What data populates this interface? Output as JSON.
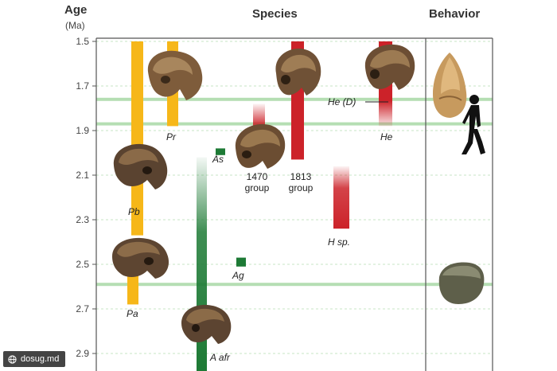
{
  "header": {
    "age": "Age",
    "age_unit": "(Ma)",
    "species": "Species",
    "behavior": "Behavior"
  },
  "watermark": {
    "text": "dosug.md",
    "icon": "globe-icon"
  },
  "colors": {
    "paranthropus": "#f6b719",
    "homo": "#cc2229",
    "australopith": "#1d7a35",
    "guide": "#b5deb3",
    "grid": "#c7e6c5"
  },
  "chart_data": {
    "type": "range-bar",
    "xlabel": "",
    "ylabel": "Age (Ma)",
    "y_ticks": [
      "1.5",
      "1.7",
      "1.9",
      "2.1",
      "2.3",
      "2.5",
      "2.7",
      "2.9"
    ],
    "ylim": [
      1.5,
      3.0
    ],
    "y_inverted": true,
    "highlight_lines": [
      1.76,
      1.87,
      2.59
    ],
    "series": [
      {
        "name": "Pr",
        "group": "paranthropus",
        "start": 1.5,
        "end": 1.88
      },
      {
        "name": "Pb",
        "group": "paranthropus",
        "start": 1.5,
        "end": 2.37
      },
      {
        "name": "Pa",
        "group": "paranthropus",
        "start": 2.45,
        "end": 2.68
      },
      {
        "name": "As",
        "group": "australopith",
        "start": 1.98,
        "end": 2.01
      },
      {
        "name": "Ag",
        "group": "australopith",
        "start": 2.47,
        "end": 2.51
      },
      {
        "name": "A afr",
        "group": "australopith",
        "start": 2.02,
        "end": 3.0,
        "fade_top": true
      },
      {
        "name": "1470 group",
        "group": "homo",
        "start": 1.78,
        "end": 2.03,
        "fade_top": true
      },
      {
        "name": "1813 group",
        "group": "homo",
        "start": 1.5,
        "end": 2.03
      },
      {
        "name": "H sp.",
        "group": "homo",
        "start": 2.06,
        "end": 2.34,
        "fade_top": true
      },
      {
        "name": "He",
        "group": "homo",
        "start": 1.5,
        "end": 1.88,
        "fade_bottom": true
      }
    ],
    "annotations": [
      {
        "text": "He (D)",
        "y": 1.77
      }
    ],
    "behavior_markers": [
      {
        "icon": "hand-axe-icon",
        "y": 1.7
      },
      {
        "icon": "walking-human-icon",
        "y": 1.84
      },
      {
        "icon": "stone-core-icon",
        "y": 2.6
      }
    ]
  }
}
